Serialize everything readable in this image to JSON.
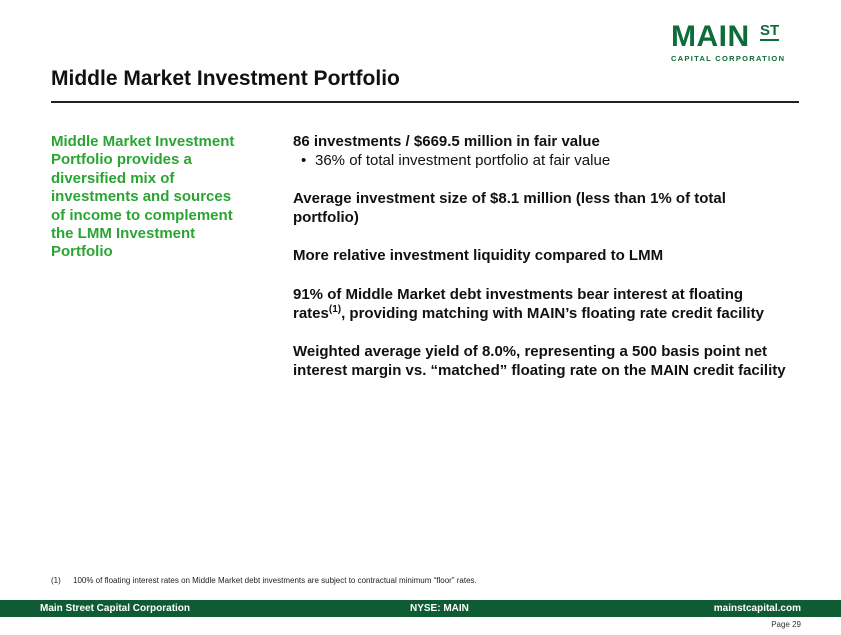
{
  "logo": {
    "main": "MAIN",
    "st": "ST",
    "sub": "CAPITAL CORPORATION"
  },
  "header": {
    "title": "Middle Market Investment Portfolio"
  },
  "sidebar": {
    "text": "Middle Market Investment Portfolio provides a diversified mix of investments and sources of income to complement the LMM Investment Portfolio"
  },
  "main": {
    "point1": "86 investments / $669.5 million in fair value",
    "point1_bullet": "36% of total investment portfolio at fair value",
    "point2": "Average investment size of $8.1 million (less than 1% of total portfolio)",
    "point3": "More relative investment liquidity compared to LMM",
    "point4_pre": "91% of Middle Market debt investments bear interest at floating rates",
    "point4_sup": "(1)",
    "point4_post": ", providing matching with MAIN’s floating rate credit facility",
    "point5": "Weighted average yield of 8.0%, representing a 500 basis point net interest margin vs. “matched” floating rate on the MAIN credit facility"
  },
  "footnote": {
    "num": "(1)",
    "text": "100% of floating interest rates on Middle Market debt investments are subject to contractual minimum “floor” rates."
  },
  "footer": {
    "left": "Main Street Capital Corporation",
    "center": "NYSE: MAIN",
    "right": "mainstcapital.com",
    "page": "Page  29"
  },
  "colors": {
    "brand_green": "#0e6b3a",
    "accent_green": "#2aa533",
    "footer_bg": "#0e5b34"
  }
}
